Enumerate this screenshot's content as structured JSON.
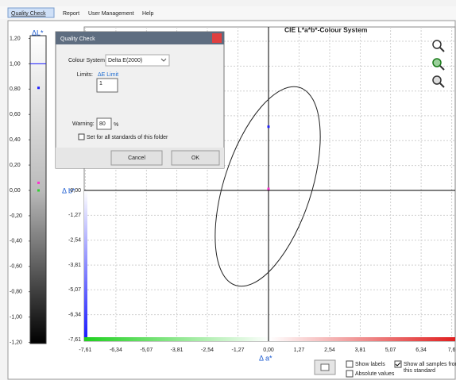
{
  "menu": [
    "Quality Check",
    "Report",
    "User Management",
    "Help"
  ],
  "lightness_scale": {
    "axis_label": "ΔL*",
    "ylim": [
      -1.2,
      1.2
    ],
    "yticks": [
      {
        "value": 1.2,
        "label": "1,20"
      },
      {
        "value": 1.0,
        "label": "1,00"
      },
      {
        "value": 0.8,
        "label": "0,80"
      },
      {
        "value": 0.6,
        "label": "0,60"
      },
      {
        "value": 0.4,
        "label": "0,40"
      },
      {
        "value": 0.2,
        "label": "0,20"
      },
      {
        "value": 0.0,
        "label": "0,00"
      },
      {
        "value": -0.2,
        "label": "-0,20"
      },
      {
        "value": -0.4,
        "label": "-0,40"
      },
      {
        "value": -0.6,
        "label": "-0,60"
      },
      {
        "value": -0.8,
        "label": "-0,80"
      },
      {
        "value": -1.0,
        "label": "-1,00"
      },
      {
        "value": -1.2,
        "label": "-1,20"
      }
    ],
    "points": [
      {
        "value": 0.81,
        "color": "#2020ff"
      },
      {
        "value": 0.06,
        "color": "#ff30d0"
      },
      {
        "value": 0.0,
        "color": "#30d030"
      }
    ]
  },
  "chart": {
    "title": "CIE L*a*b*-Colour System",
    "x_label": "Δ a*",
    "y_label": "Δ b*",
    "xlim": [
      -7.61,
      7.61
    ],
    "ylim": [
      -7.61,
      7.61
    ],
    "xticks": [
      {
        "value": -7.61,
        "label": "-7,61"
      },
      {
        "value": -6.34,
        "label": "-6,34"
      },
      {
        "value": -5.07,
        "label": "-5,07"
      },
      {
        "value": -3.81,
        "label": "-3,81"
      },
      {
        "value": -2.54,
        "label": "-2,54"
      },
      {
        "value": -1.27,
        "label": "-1,27"
      },
      {
        "value": 0.0,
        "label": "0,00"
      },
      {
        "value": 1.27,
        "label": "1,27"
      },
      {
        "value": 2.54,
        "label": "2,54"
      },
      {
        "value": 3.81,
        "label": "3,81"
      },
      {
        "value": 5.07,
        "label": "5,07"
      },
      {
        "value": 6.34,
        "label": "6,34"
      },
      {
        "value": 7.61,
        "label": "7,6"
      }
    ],
    "yticks": [
      {
        "value": 0.0,
        "label": "0,00"
      },
      {
        "value": -1.27,
        "label": "-1,27"
      },
      {
        "value": -2.54,
        "label": "-2,54"
      },
      {
        "value": -3.81,
        "label": "-3,81"
      },
      {
        "value": -5.07,
        "label": "-5,07"
      },
      {
        "value": -6.34,
        "label": "-6,34"
      },
      {
        "value": -7.61,
        "label": "-7,61"
      }
    ],
    "points": [
      {
        "x": 0.0,
        "y": 3.25,
        "color": "#2020ff"
      },
      {
        "x": 0.0,
        "y": 0.08,
        "color": "#ff30d0"
      }
    ]
  },
  "dialog": {
    "title": "Quality Check",
    "colour_system_label": "Colour System",
    "colour_system": "Delta E(2000)",
    "limits_label": "Limits:",
    "limit_name": "ΔE Limit",
    "limit_value": "1",
    "warning_label": "Warning:",
    "warning_value": "80",
    "warning_unit": "%",
    "set_all": {
      "label": "Set for all standards of this folder",
      "checked": false
    },
    "cancel": "Cancel",
    "ok": "OK"
  },
  "options": [
    {
      "label": "Show labels",
      "checked": false
    },
    {
      "label": "Absolute values",
      "checked": false
    },
    {
      "label": "Show all samples from this standard",
      "checked": true
    }
  ]
}
